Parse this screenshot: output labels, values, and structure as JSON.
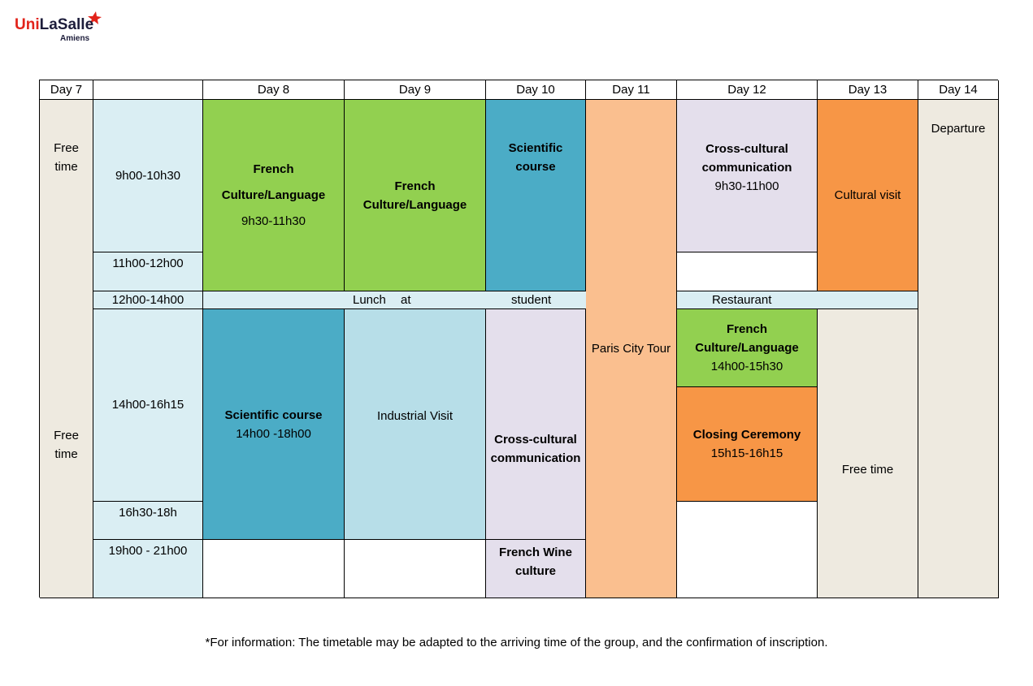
{
  "header": {
    "logo_part1": "Uni",
    "logo_part2": "LaSalle",
    "logo_campus": "Amiens"
  },
  "table": {
    "headers": [
      "Day 7",
      "Day 8",
      "Day 9",
      "Day 10",
      "Day 11",
      "Day 12",
      "Day 13",
      "Day 14"
    ],
    "day7": [
      "Free time",
      "Free time"
    ],
    "time_slots": [
      "9h00-10h30",
      "11h00-12h00",
      "12h00-14h00",
      "14h00-16h15",
      "16h30-18h",
      "19h00 - 21h00"
    ],
    "lunch": [
      "Lunch at",
      "student",
      "Restaurant"
    ],
    "activities": [
      {
        "title": "French Culture/Language",
        "time": "9h30-11h30"
      },
      {
        "title": "French Culture/Language"
      },
      {
        "title": "Scientific course"
      },
      {
        "title": "Paris City Tour"
      },
      {
        "title": "Cross-cultural communication",
        "time": "9h30-11h00"
      },
      {
        "title": "Cultural visit"
      },
      {
        "title": "Departure"
      },
      {
        "title": "Scientific course",
        "time": "14h00 -18h00"
      },
      {
        "title": "Industrial Visit"
      },
      {
        "title": "Cross-cultural communication"
      },
      {
        "title": "French Wine culture"
      },
      {
        "title": "French Culture/Language",
        "time": "14h00-15h30"
      },
      {
        "title": "Closing Ceremony",
        "time": "15h15-16h15"
      },
      {
        "title": "Free time"
      }
    ]
  },
  "footnote": "*For information: The timetable may be adapted to the arriving time of the group, and the confirmation of inscription."
}
